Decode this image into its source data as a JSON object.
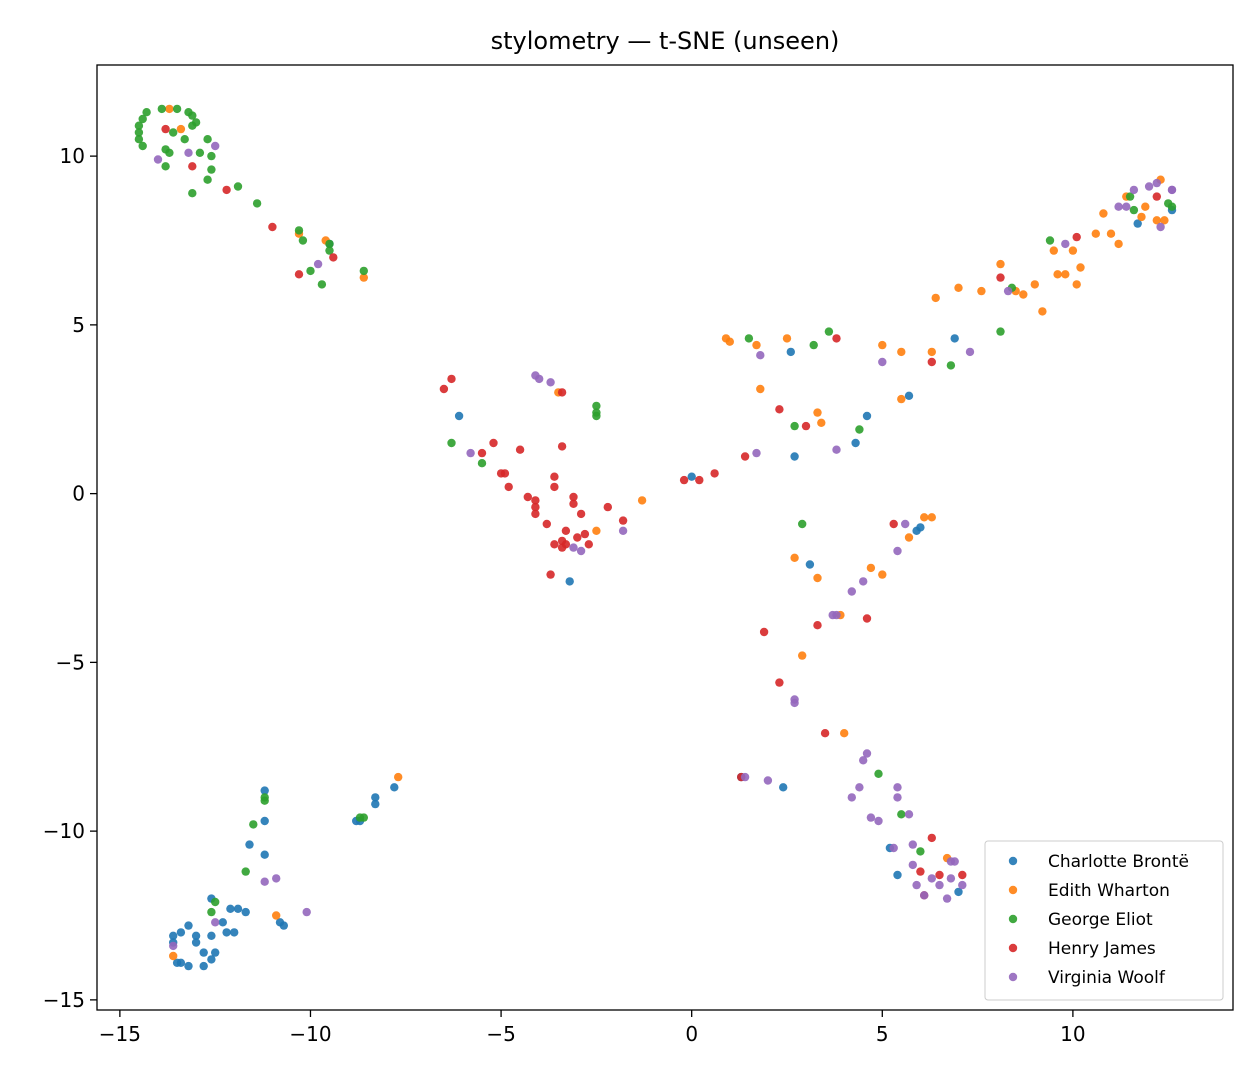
{
  "chart_data": {
    "type": "scatter",
    "title": "stylometry — t-SNE (unseen)",
    "xlabel": "",
    "ylabel": "",
    "xlim": [
      -15.6,
      14.2
    ],
    "ylim": [
      -15.3,
      12.7
    ],
    "xticks": [
      -15,
      -10,
      -5,
      0,
      5,
      10
    ],
    "yticks": [
      -15,
      -10,
      -5,
      0,
      5,
      10
    ],
    "xtick_labels": [
      "−15",
      "−10",
      "−5",
      "0",
      "5",
      "10"
    ],
    "ytick_labels": [
      "−15",
      "−10",
      "−5",
      "0",
      "5",
      "10"
    ],
    "grid": false,
    "legend_position": "lower-right",
    "series": [
      {
        "name": "Charlotte Brontë",
        "color": "#1f77b4",
        "points": [
          [
            -9.5,
            7.4
          ],
          [
            -6.1,
            2.3
          ],
          [
            0.0,
            0.5
          ],
          [
            2.6,
            4.2
          ],
          [
            2.7,
            1.1
          ],
          [
            6.9,
            4.6
          ],
          [
            5.7,
            2.9
          ],
          [
            4.6,
            2.3
          ],
          [
            4.3,
            1.5
          ],
          [
            11.7,
            8.0
          ],
          [
            12.6,
            8.4
          ],
          [
            -3.2,
            -2.6
          ],
          [
            3.1,
            -2.1
          ],
          [
            5.9,
            -1.1
          ],
          [
            6.0,
            -1.0
          ],
          [
            1.3,
            -8.4
          ],
          [
            2.4,
            -8.7
          ],
          [
            5.2,
            -10.5
          ],
          [
            5.4,
            -11.3
          ],
          [
            7.0,
            -11.8
          ],
          [
            -11.2,
            -8.8
          ],
          [
            -11.2,
            -9.7
          ],
          [
            -11.6,
            -10.4
          ],
          [
            -11.2,
            -10.7
          ],
          [
            -10.8,
            -12.7
          ],
          [
            -10.7,
            -12.8
          ],
          [
            -12.6,
            -12.0
          ],
          [
            -11.9,
            -12.3
          ],
          [
            -12.1,
            -12.3
          ],
          [
            -11.7,
            -12.4
          ],
          [
            -12.3,
            -12.7
          ],
          [
            -12.2,
            -13.0
          ],
          [
            -12.0,
            -13.0
          ],
          [
            -12.6,
            -13.1
          ],
          [
            -13.0,
            -13.1
          ],
          [
            -12.5,
            -13.6
          ],
          [
            -12.8,
            -13.6
          ],
          [
            -13.0,
            -13.3
          ],
          [
            -13.4,
            -13.0
          ],
          [
            -13.6,
            -13.1
          ],
          [
            -13.6,
            -13.3
          ],
          [
            -13.2,
            -12.8
          ],
          [
            -13.5,
            -13.9
          ],
          [
            -13.4,
            -13.9
          ],
          [
            -13.2,
            -14.0
          ],
          [
            -12.8,
            -14.0
          ],
          [
            -12.6,
            -13.8
          ],
          [
            -8.7,
            -9.7
          ],
          [
            -8.8,
            -9.7
          ],
          [
            -8.3,
            -9.0
          ],
          [
            -8.3,
            -9.2
          ],
          [
            -7.8,
            -8.7
          ]
        ]
      },
      {
        "name": "Edith Wharton",
        "color": "#ff7f0e",
        "points": [
          [
            -13.7,
            11.4
          ],
          [
            -13.4,
            10.8
          ],
          [
            -10.3,
            7.7
          ],
          [
            -9.6,
            7.5
          ],
          [
            -8.6,
            6.4
          ],
          [
            0.9,
            4.6
          ],
          [
            1.0,
            4.5
          ],
          [
            1.7,
            4.4
          ],
          [
            2.5,
            4.6
          ],
          [
            5.0,
            4.4
          ],
          [
            5.5,
            4.2
          ],
          [
            6.3,
            4.2
          ],
          [
            6.4,
            5.8
          ],
          [
            7.0,
            6.1
          ],
          [
            7.6,
            6.0
          ],
          [
            8.1,
            6.8
          ],
          [
            8.5,
            6.0
          ],
          [
            8.7,
            5.9
          ],
          [
            9.0,
            6.2
          ],
          [
            9.2,
            5.4
          ],
          [
            9.5,
            7.2
          ],
          [
            9.6,
            6.5
          ],
          [
            9.8,
            6.5
          ],
          [
            10.0,
            7.2
          ],
          [
            10.1,
            6.2
          ],
          [
            10.2,
            6.7
          ],
          [
            10.6,
            7.7
          ],
          [
            10.8,
            8.3
          ],
          [
            11.0,
            7.7
          ],
          [
            11.2,
            7.4
          ],
          [
            11.4,
            8.8
          ],
          [
            11.8,
            8.2
          ],
          [
            11.9,
            8.5
          ],
          [
            12.2,
            8.1
          ],
          [
            12.3,
            9.3
          ],
          [
            12.4,
            8.1
          ],
          [
            1.8,
            3.1
          ],
          [
            3.3,
            2.4
          ],
          [
            3.4,
            2.1
          ],
          [
            5.5,
            2.8
          ],
          [
            -3.5,
            3.0
          ],
          [
            -2.5,
            -1.1
          ],
          [
            -1.3,
            -0.2
          ],
          [
            6.1,
            -0.7
          ],
          [
            6.3,
            -0.7
          ],
          [
            5.7,
            -1.3
          ],
          [
            2.7,
            -1.9
          ],
          [
            3.3,
            -2.5
          ],
          [
            4.7,
            -2.2
          ],
          [
            5.0,
            -2.4
          ],
          [
            3.9,
            -3.6
          ],
          [
            2.9,
            -4.8
          ],
          [
            4.0,
            -7.1
          ],
          [
            -7.7,
            -8.4
          ],
          [
            -10.9,
            -12.5
          ],
          [
            -13.6,
            -13.7
          ],
          [
            6.7,
            -10.8
          ]
        ]
      },
      {
        "name": "George Eliot",
        "color": "#2ca02c",
        "points": [
          [
            -14.5,
            10.9
          ],
          [
            -14.4,
            11.1
          ],
          [
            -14.3,
            11.3
          ],
          [
            -14.5,
            10.5
          ],
          [
            -14.5,
            10.7
          ],
          [
            -14.4,
            10.3
          ],
          [
            -13.9,
            11.4
          ],
          [
            -13.5,
            11.4
          ],
          [
            -13.2,
            11.3
          ],
          [
            -13.1,
            11.2
          ],
          [
            -13.1,
            10.9
          ],
          [
            -13.0,
            11.0
          ],
          [
            -13.6,
            10.7
          ],
          [
            -13.3,
            10.5
          ],
          [
            -13.8,
            10.2
          ],
          [
            -13.7,
            10.1
          ],
          [
            -12.9,
            10.1
          ],
          [
            -12.7,
            10.5
          ],
          [
            -12.6,
            10.0
          ],
          [
            -13.8,
            9.7
          ],
          [
            -12.6,
            9.6
          ],
          [
            -12.7,
            9.3
          ],
          [
            -13.1,
            8.9
          ],
          [
            -11.9,
            9.1
          ],
          [
            -11.4,
            8.6
          ],
          [
            -10.3,
            7.8
          ],
          [
            -10.2,
            7.5
          ],
          [
            -9.5,
            7.2
          ],
          [
            -9.5,
            7.4
          ],
          [
            -10.0,
            6.6
          ],
          [
            -9.7,
            6.2
          ],
          [
            -8.6,
            6.6
          ],
          [
            1.5,
            4.6
          ],
          [
            3.2,
            4.4
          ],
          [
            3.6,
            4.8
          ],
          [
            6.8,
            3.8
          ],
          [
            8.1,
            4.8
          ],
          [
            8.4,
            6.1
          ],
          [
            9.4,
            7.5
          ],
          [
            11.5,
            8.8
          ],
          [
            11.6,
            8.4
          ],
          [
            12.5,
            8.6
          ],
          [
            12.6,
            8.5
          ],
          [
            -6.3,
            1.5
          ],
          [
            -5.5,
            0.9
          ],
          [
            -2.5,
            2.6
          ],
          [
            -2.5,
            2.4
          ],
          [
            -2.5,
            2.3
          ],
          [
            2.7,
            2.0
          ],
          [
            4.4,
            1.9
          ],
          [
            2.9,
            -0.9
          ],
          [
            4.9,
            -8.3
          ],
          [
            5.5,
            -9.5
          ],
          [
            6.0,
            -10.6
          ],
          [
            -11.2,
            -9.0
          ],
          [
            -11.2,
            -9.1
          ],
          [
            -11.5,
            -9.8
          ],
          [
            -11.7,
            -11.2
          ],
          [
            -12.5,
            -12.1
          ],
          [
            -12.6,
            -12.4
          ],
          [
            -8.6,
            -9.6
          ],
          [
            -8.7,
            -9.6
          ]
        ]
      },
      {
        "name": "Henry James",
        "color": "#d62728",
        "points": [
          [
            -13.8,
            10.8
          ],
          [
            -13.1,
            9.7
          ],
          [
            -12.2,
            9.0
          ],
          [
            -11.0,
            7.9
          ],
          [
            -10.3,
            6.5
          ],
          [
            -9.4,
            7.0
          ],
          [
            -6.5,
            3.1
          ],
          [
            -6.3,
            3.4
          ],
          [
            -3.4,
            3.0
          ],
          [
            -3.4,
            1.4
          ],
          [
            -5.2,
            1.5
          ],
          [
            -5.5,
            1.2
          ],
          [
            -4.5,
            1.3
          ],
          [
            -5.0,
            0.6
          ],
          [
            -4.9,
            0.6
          ],
          [
            -4.8,
            0.2
          ],
          [
            -4.3,
            -0.1
          ],
          [
            -4.1,
            -0.2
          ],
          [
            -4.1,
            -0.4
          ],
          [
            -4.1,
            -0.6
          ],
          [
            -3.8,
            -0.9
          ],
          [
            -3.6,
            0.5
          ],
          [
            -3.6,
            0.2
          ],
          [
            -3.1,
            -0.1
          ],
          [
            -3.1,
            -0.3
          ],
          [
            -2.9,
            -0.6
          ],
          [
            -3.3,
            -1.1
          ],
          [
            -3.6,
            -1.5
          ],
          [
            -3.4,
            -1.4
          ],
          [
            -3.4,
            -1.6
          ],
          [
            -3.3,
            -1.5
          ],
          [
            -3.0,
            -1.3
          ],
          [
            -2.8,
            -1.2
          ],
          [
            -2.7,
            -1.5
          ],
          [
            -2.2,
            -0.4
          ],
          [
            -1.8,
            -0.8
          ],
          [
            -3.7,
            -2.4
          ],
          [
            -0.2,
            0.4
          ],
          [
            0.2,
            0.4
          ],
          [
            0.6,
            0.6
          ],
          [
            1.4,
            1.1
          ],
          [
            2.3,
            2.5
          ],
          [
            3.0,
            2.0
          ],
          [
            3.8,
            4.6
          ],
          [
            6.3,
            3.9
          ],
          [
            8.1,
            6.4
          ],
          [
            10.1,
            7.6
          ],
          [
            12.2,
            8.8
          ],
          [
            5.3,
            -0.9
          ],
          [
            1.9,
            -4.1
          ],
          [
            3.3,
            -3.9
          ],
          [
            4.6,
            -3.7
          ],
          [
            2.3,
            -5.6
          ],
          [
            3.5,
            -7.1
          ],
          [
            1.3,
            -8.4
          ],
          [
            6.0,
            -11.2
          ],
          [
            6.1,
            -11.9
          ],
          [
            6.3,
            -10.2
          ],
          [
            6.5,
            -11.3
          ],
          [
            7.1,
            -11.3
          ]
        ]
      },
      {
        "name": "Virginia Woolf",
        "color": "#9467bd",
        "points": [
          [
            -14.0,
            9.9
          ],
          [
            -13.2,
            10.1
          ],
          [
            -12.5,
            10.3
          ],
          [
            -9.8,
            6.8
          ],
          [
            -4.1,
            3.5
          ],
          [
            -4.0,
            3.4
          ],
          [
            -3.7,
            3.3
          ],
          [
            -5.8,
            1.2
          ],
          [
            1.8,
            4.1
          ],
          [
            5.0,
            3.9
          ],
          [
            7.3,
            4.2
          ],
          [
            8.3,
            6.0
          ],
          [
            9.8,
            7.4
          ],
          [
            11.2,
            8.5
          ],
          [
            11.4,
            8.5
          ],
          [
            11.6,
            9.0
          ],
          [
            12.0,
            9.1
          ],
          [
            12.2,
            9.2
          ],
          [
            12.3,
            7.9
          ],
          [
            12.6,
            9.0
          ],
          [
            12.6,
            9.0
          ],
          [
            1.7,
            1.2
          ],
          [
            3.8,
            1.3
          ],
          [
            -3.1,
            -1.6
          ],
          [
            -2.9,
            -1.7
          ],
          [
            -1.8,
            -1.1
          ],
          [
            5.4,
            -1.7
          ],
          [
            5.6,
            -0.9
          ],
          [
            4.5,
            -2.6
          ],
          [
            4.2,
            -2.9
          ],
          [
            3.7,
            -3.6
          ],
          [
            3.8,
            -3.6
          ],
          [
            2.7,
            -6.2
          ],
          [
            2.7,
            -6.1
          ],
          [
            1.4,
            -8.4
          ],
          [
            2.0,
            -8.5
          ],
          [
            4.2,
            -9.0
          ],
          [
            4.4,
            -8.7
          ],
          [
            4.5,
            -7.9
          ],
          [
            4.6,
            -7.7
          ],
          [
            4.7,
            -9.6
          ],
          [
            4.9,
            -9.7
          ],
          [
            5.4,
            -8.7
          ],
          [
            5.4,
            -9.0
          ],
          [
            5.7,
            -9.5
          ],
          [
            5.3,
            -10.5
          ],
          [
            5.8,
            -10.4
          ],
          [
            5.8,
            -11.0
          ],
          [
            5.9,
            -11.6
          ],
          [
            6.1,
            -11.9
          ],
          [
            6.3,
            -11.4
          ],
          [
            6.5,
            -11.6
          ],
          [
            6.7,
            -12.0
          ],
          [
            6.8,
            -11.4
          ],
          [
            6.8,
            -10.9
          ],
          [
            6.9,
            -10.9
          ],
          [
            7.1,
            -11.6
          ],
          [
            -13.6,
            -13.4
          ],
          [
            -12.5,
            -12.7
          ],
          [
            -11.2,
            -11.5
          ],
          [
            -10.9,
            -11.4
          ],
          [
            -10.1,
            -12.4
          ]
        ]
      }
    ]
  }
}
